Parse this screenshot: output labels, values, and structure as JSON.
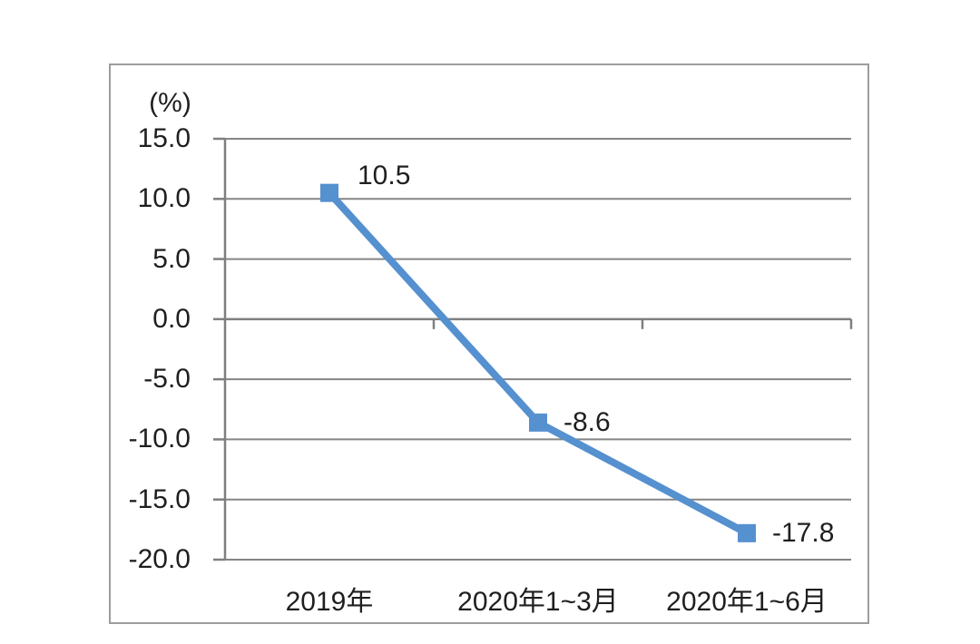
{
  "chart_data": {
    "type": "line",
    "title": "",
    "unit_label": "(%)",
    "categories": [
      "2019年",
      "2020年1~3月",
      "2020年1~6月"
    ],
    "values": [
      10.5,
      -8.6,
      -17.8
    ],
    "data_labels": [
      "10.5",
      "-8.6",
      "-17.8"
    ],
    "ylim": [
      -20,
      15
    ],
    "ytick_step": 5,
    "ytick_labels": [
      "15.0",
      "10.0",
      "5.0",
      "0.0",
      "-5.0",
      "-10.0",
      "-15.0",
      "-20.0"
    ],
    "xlabel": "",
    "ylabel": "(%)",
    "grid": true,
    "legend_position": "none",
    "colors": {
      "series": "#5590cf",
      "gridline": "#858585",
      "axis": "#7f7f7f",
      "frame_border": "#9d9d9d",
      "text": "#1f1f1f",
      "background": "#ffffff"
    },
    "marker": "square"
  }
}
